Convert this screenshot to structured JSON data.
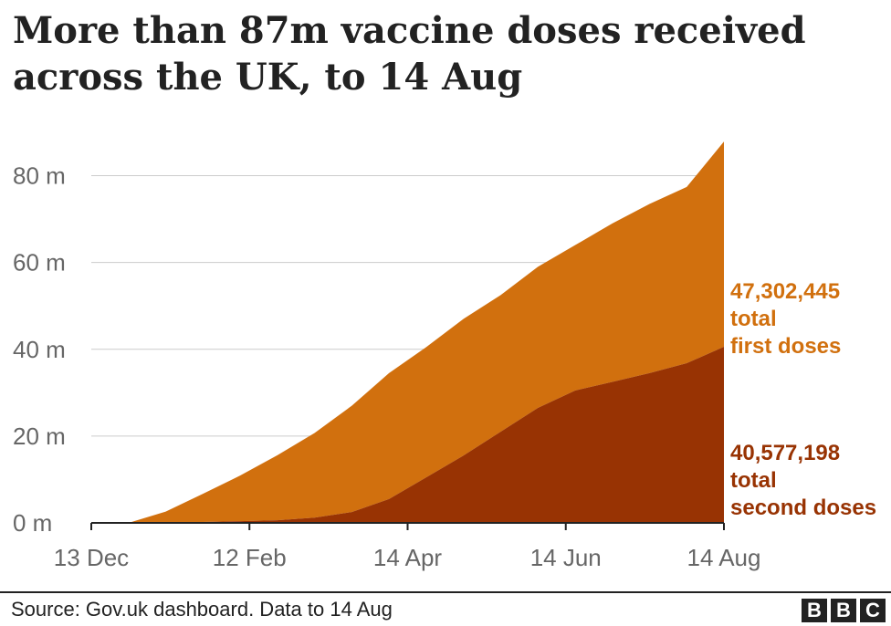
{
  "title": "More than 87m vaccine doses received across the UK, to 14 Aug",
  "footer": {
    "source": "Source: Gov.uk dashboard. Data to 14 Aug",
    "logo_letters": [
      "B",
      "B",
      "C"
    ]
  },
  "colors": {
    "first": "#d1700e",
    "second": "#983303",
    "grid": "#cccccc",
    "axis": "#222222",
    "tick_label": "#666666"
  },
  "chart_data": {
    "type": "area",
    "stacked": true,
    "x_tick_labels": [
      "13 Dec",
      "12 Feb",
      "14 Apr",
      "14 Jun",
      "14 Aug"
    ],
    "y_tick_labels": [
      "0 m",
      "20 m",
      "40 m",
      "60 m",
      "80 m"
    ],
    "y_ticks": [
      0,
      20,
      40,
      60,
      80
    ],
    "ylim": [
      0,
      90
    ],
    "x": [
      "13 Dec",
      "27 Dec",
      "10 Jan",
      "24 Jan",
      "7 Feb",
      "21 Feb",
      "7 Mar",
      "21 Mar",
      "4 Apr",
      "18 Apr",
      "2 May",
      "16 May",
      "30 May",
      "13 Jun",
      "27 Jun",
      "11 Jul",
      "25 Jul",
      "14 Aug"
    ],
    "series": [
      {
        "key": "second",
        "values": [
          0,
          0,
          0.1,
          0.2,
          0.4,
          0.6,
          1.2,
          2.5,
          5.5,
          10.5,
          15.5,
          21,
          26.5,
          30.5,
          32.5,
          34.5,
          36.8,
          40.58
        ]
      },
      {
        "key": "first",
        "values": [
          0,
          0,
          2.5,
          6.5,
          10.5,
          15,
          19.5,
          24.5,
          29,
          30,
          31.5,
          31.5,
          32.5,
          33.5,
          36.5,
          39,
          40.6,
          47.3
        ]
      }
    ],
    "annotations": [
      {
        "key": "first",
        "lines": [
          "47,302,445",
          "total",
          "first doses"
        ]
      },
      {
        "key": "second",
        "lines": [
          "40,577,198",
          "total",
          "second doses"
        ]
      }
    ]
  }
}
